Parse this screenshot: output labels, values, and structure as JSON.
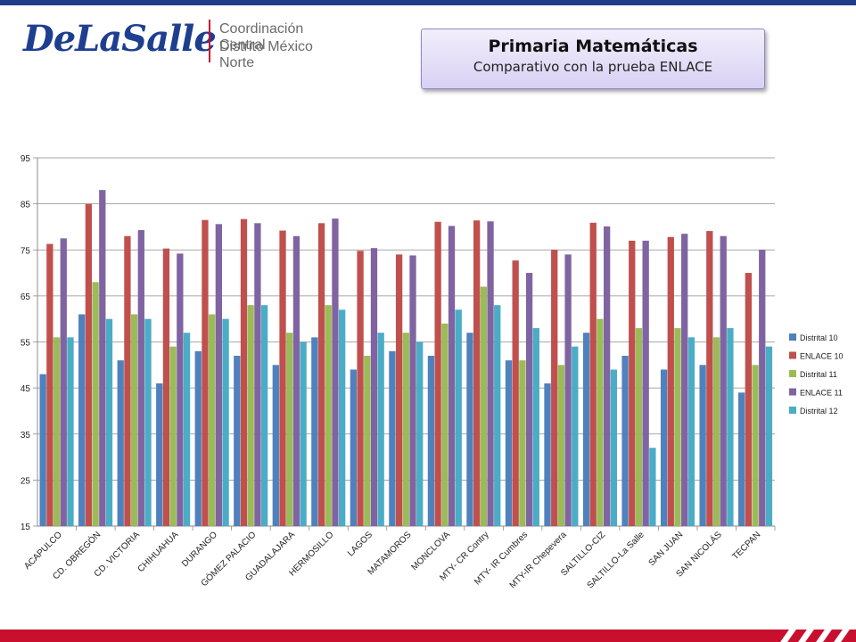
{
  "logo": {
    "wordmark": "DeLaSalle",
    "line1": "Coordinación Central",
    "line2": "Distrito México Norte"
  },
  "title_box": {
    "title": "Primaria Matemáticas",
    "subtitle": "Comparativo con la prueba ENLACE"
  },
  "chart_data": {
    "type": "bar",
    "categories": [
      "ACAPULCO",
      "CD. OBREGÓN",
      "CD. VICTORIA",
      "CHIHUAHUA",
      "DURANGO",
      "GÓMEZ PALACIO",
      "GUADALAJARA",
      "HERMOSILLO",
      "LAGOS",
      "MATAMOROS",
      "MONCLOVA",
      "MTY- CR Contry",
      "MTY- IR Cumbres",
      "MTY-IR Chepevera",
      "SALTILLO-CIZ",
      "SALTILLO-La Salle",
      "SAN JUAN",
      "SAN NICOLÁS",
      "TECPAN"
    ],
    "series": [
      {
        "name": "Distrital 10",
        "color": "#4f81bd",
        "values": [
          48,
          61,
          51,
          46,
          53,
          52,
          50,
          56,
          49,
          53,
          52,
          57,
          51,
          46,
          57,
          52,
          49,
          50,
          44
        ]
      },
      {
        "name": "ENLACE 10",
        "color": "#c0504d",
        "values": [
          76.3,
          85,
          78,
          75.3,
          81.5,
          81.7,
          79.2,
          80.8,
          74.8,
          74,
          81.1,
          81.4,
          72.7,
          75,
          80.9,
          77,
          77.8,
          79.1,
          70
        ]
      },
      {
        "name": "Distrital 11",
        "color": "#9bbb59",
        "values": [
          56,
          68,
          61,
          54,
          61,
          63,
          57,
          63,
          52,
          57,
          59,
          67,
          51,
          50,
          60,
          58,
          58,
          56,
          50
        ]
      },
      {
        "name": "ENLACE 11",
        "color": "#8064a2",
        "values": [
          77.5,
          88,
          79.3,
          74.2,
          80.6,
          80.8,
          78,
          81.8,
          75.4,
          73.8,
          80.2,
          81.2,
          70,
          74,
          80.1,
          77,
          78.5,
          78,
          75
        ]
      },
      {
        "name": "Distrital 12",
        "color": "#4bacc6",
        "values": [
          56,
          60,
          60,
          57,
          60,
          63,
          55,
          62,
          57,
          55,
          62,
          63,
          58,
          54,
          49,
          32,
          56,
          58,
          54
        ]
      }
    ],
    "ylim": [
      15,
      95
    ],
    "yticks": [
      15,
      25,
      35,
      45,
      55,
      65,
      75,
      85,
      95
    ],
    "legend_position": "right",
    "grid": true
  }
}
